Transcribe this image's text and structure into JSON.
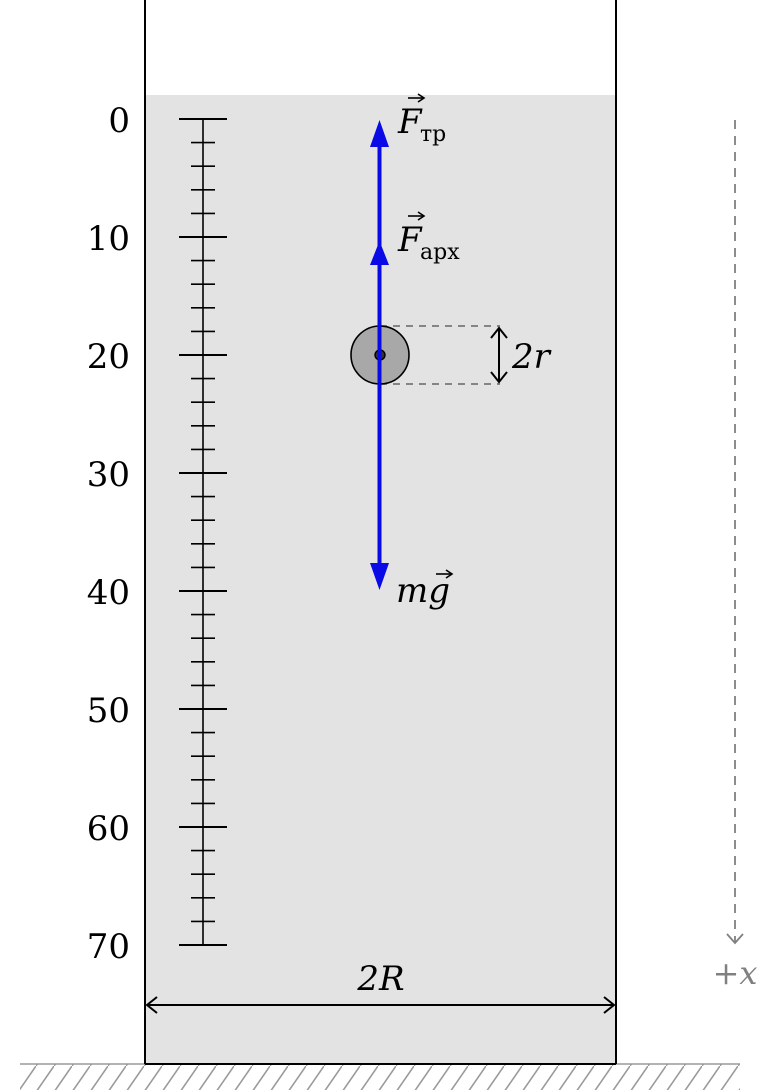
{
  "scale": {
    "tick_labels": [
      "0",
      "10",
      "20",
      "30",
      "40",
      "50",
      "60",
      "70"
    ],
    "min": 0,
    "max": 70,
    "major_step": 10,
    "minor_step": 2
  },
  "forces": {
    "friction": {
      "symbol": "F",
      "subscript": "тр"
    },
    "archimedes": {
      "symbol": "F",
      "subscript": "арх"
    },
    "gravity": {
      "symbol": "mg"
    }
  },
  "labels": {
    "ball_diameter": "2r",
    "vessel_width": "2R",
    "axis": "+x"
  },
  "colors": {
    "liquid": "#e3e3e3",
    "force_arrow": "#0a0ae6",
    "ball_fill": "#a8a8a8",
    "axis_gray": "#808080"
  }
}
